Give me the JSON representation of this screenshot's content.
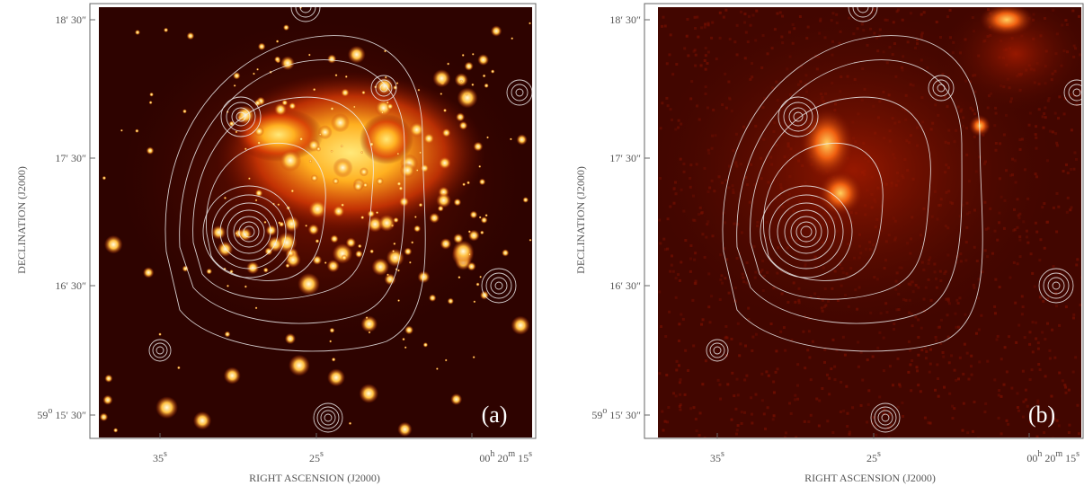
{
  "figure": {
    "panels": [
      {
        "label": "(a)"
      },
      {
        "label": "(b)"
      }
    ],
    "x_axis_title": "RIGHT ASCENSION (J2000)",
    "y_axis_title": "DECLINATION (J2000)",
    "yticks": [
      [
        {
          "text": "18′ 30″"
        }
      ],
      [
        {
          "text": "17′ 30″"
        }
      ],
      [
        {
          "text": "16′ 30″"
        }
      ],
      [
        {
          "text": "59"
        },
        {
          "sup": "o"
        },
        {
          "text": " 15′ 30″"
        }
      ]
    ],
    "xticks": [
      [
        {
          "text": "35"
        },
        {
          "sup": "s"
        }
      ],
      [
        {
          "text": "25"
        },
        {
          "sup": "s"
        }
      ],
      [
        {
          "text": "00"
        },
        {
          "sup": "h"
        },
        {
          "text": " 20"
        },
        {
          "sup": "m"
        },
        {
          "text": " 15"
        },
        {
          "sup": "s"
        }
      ]
    ]
  }
}
